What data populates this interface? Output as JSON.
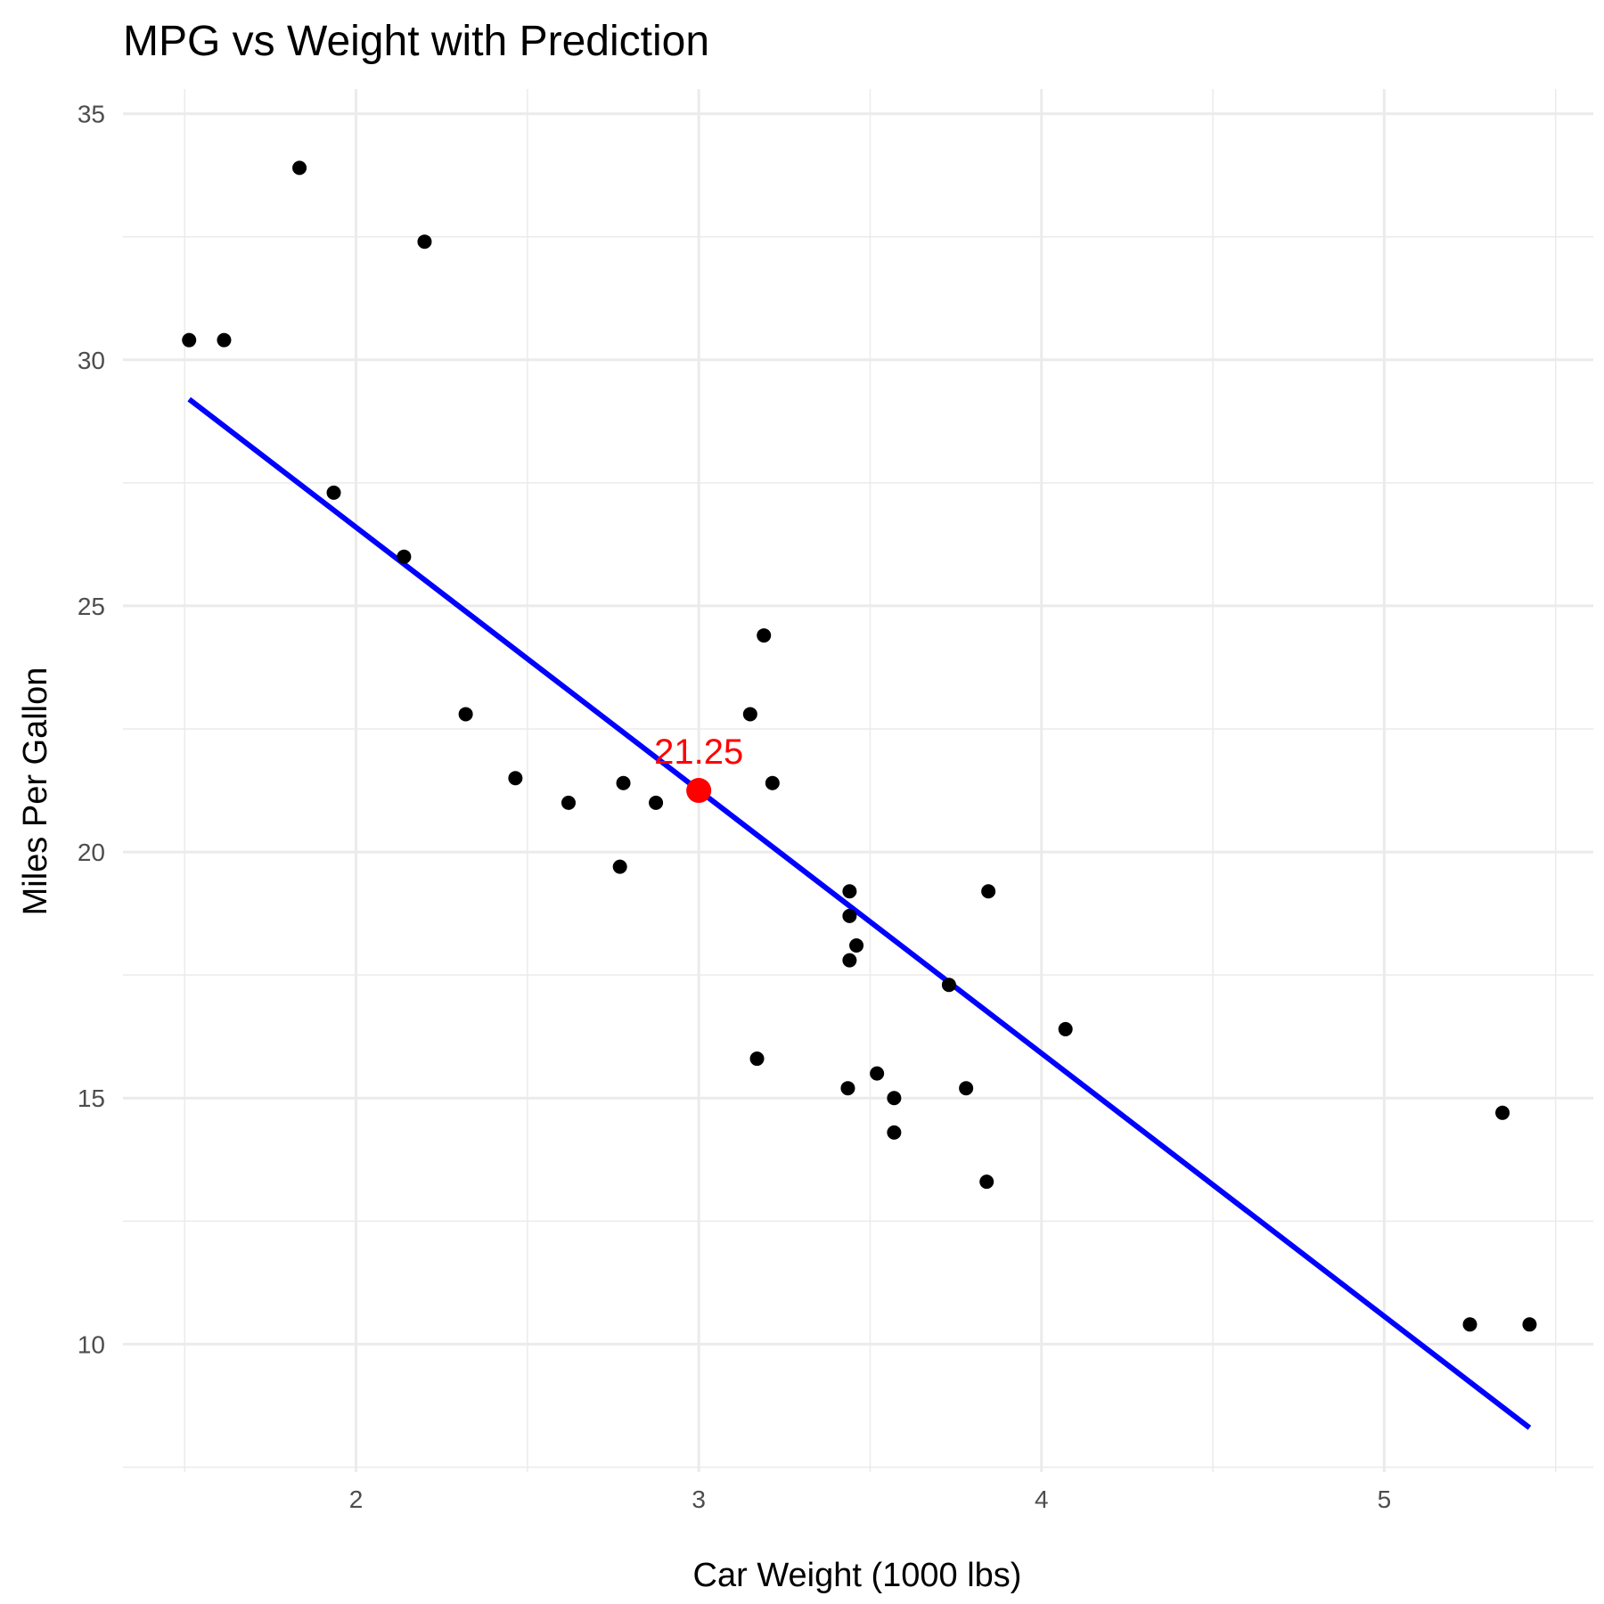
{
  "chart_data": {
    "type": "scatter",
    "title": "MPG vs Weight with Prediction",
    "xlabel": "Car Weight (1000 lbs)",
    "ylabel": "Miles Per Gallon",
    "xlim": [
      1.32,
      5.61
    ],
    "ylim": [
      7.4,
      35.5
    ],
    "x_ticks": [
      2,
      3,
      4,
      5
    ],
    "y_ticks": [
      10,
      15,
      20,
      25,
      30,
      35
    ],
    "grid": true,
    "points": [
      {
        "x": 2.62,
        "y": 21.0
      },
      {
        "x": 2.875,
        "y": 21.0
      },
      {
        "x": 2.32,
        "y": 22.8
      },
      {
        "x": 3.215,
        "y": 21.4
      },
      {
        "x": 3.44,
        "y": 18.7
      },
      {
        "x": 3.46,
        "y": 18.1
      },
      {
        "x": 3.57,
        "y": 14.3
      },
      {
        "x": 3.19,
        "y": 24.4
      },
      {
        "x": 3.15,
        "y": 22.8
      },
      {
        "x": 3.44,
        "y": 19.2
      },
      {
        "x": 3.44,
        "y": 17.8
      },
      {
        "x": 4.07,
        "y": 16.4
      },
      {
        "x": 3.73,
        "y": 17.3
      },
      {
        "x": 3.78,
        "y": 15.2
      },
      {
        "x": 5.25,
        "y": 10.4
      },
      {
        "x": 5.424,
        "y": 10.4
      },
      {
        "x": 5.345,
        "y": 14.7
      },
      {
        "x": 2.2,
        "y": 32.4
      },
      {
        "x": 1.615,
        "y": 30.4
      },
      {
        "x": 1.835,
        "y": 33.9
      },
      {
        "x": 2.465,
        "y": 21.5
      },
      {
        "x": 3.52,
        "y": 15.5
      },
      {
        "x": 3.435,
        "y": 15.2
      },
      {
        "x": 3.84,
        "y": 13.3
      },
      {
        "x": 3.845,
        "y": 19.2
      },
      {
        "x": 1.935,
        "y": 27.3
      },
      {
        "x": 2.14,
        "y": 26.0
      },
      {
        "x": 1.513,
        "y": 30.4
      },
      {
        "x": 3.17,
        "y": 15.8
      },
      {
        "x": 2.77,
        "y": 19.7
      },
      {
        "x": 3.57,
        "y": 15.0
      },
      {
        "x": 2.78,
        "y": 21.4
      }
    ],
    "regression_line": {
      "x": [
        1.513,
        5.424
      ],
      "y": [
        29.2,
        8.3
      ],
      "color": "#0000ff"
    },
    "prediction": {
      "x": 3.0,
      "y": 21.25,
      "label": "21.25",
      "color": "#ff0000"
    },
    "point_color": "#000000",
    "grid_color": "#ebebeb"
  }
}
